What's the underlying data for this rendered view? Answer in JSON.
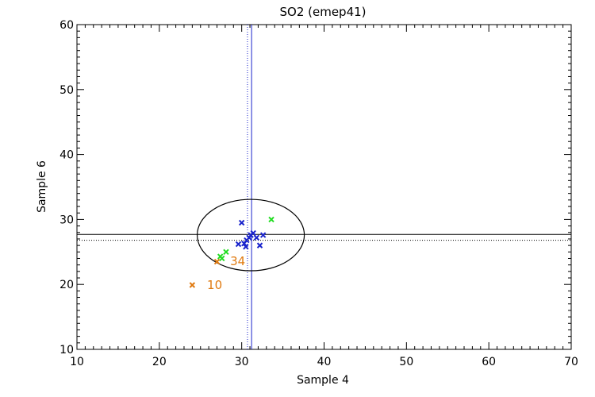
{
  "chart_data": {
    "type": "scatter",
    "title": "SO2 (emep41)",
    "xlabel": "Sample 4",
    "ylabel": "Sample 6",
    "xlim": [
      10,
      70
    ],
    "ylim": [
      10,
      60
    ],
    "xticks": [
      10,
      20,
      30,
      40,
      50,
      60,
      70
    ],
    "yticks": [
      10,
      20,
      30,
      40,
      50,
      60
    ],
    "grid": false,
    "colors": {
      "blue": "#1a24cc",
      "green": "#22dd22",
      "orange": "#e07a10",
      "ellipse": "#000000",
      "lines": "#1a24cc"
    },
    "series": [
      {
        "color_key": "blue",
        "points": [
          [
            30.0,
            29.5
          ],
          [
            29.6,
            26.2
          ],
          [
            30.3,
            26.3
          ],
          [
            30.5,
            25.8
          ],
          [
            30.6,
            26.8
          ],
          [
            30.9,
            27.2
          ],
          [
            31.1,
            27.6
          ],
          [
            31.4,
            27.9
          ],
          [
            31.8,
            27.2
          ],
          [
            32.2,
            26.0
          ],
          [
            32.6,
            27.6
          ]
        ]
      },
      {
        "color_key": "green",
        "points": [
          [
            33.6,
            30.0
          ],
          [
            28.1,
            25.0
          ],
          [
            27.4,
            24.3
          ],
          [
            27.6,
            24.0
          ]
        ]
      },
      {
        "color_key": "orange",
        "points": [
          [
            24.0,
            19.9
          ],
          [
            27.0,
            23.5
          ]
        ]
      }
    ],
    "annotations": [
      {
        "text": "10",
        "x": 25.8,
        "y": 19.9,
        "color_key": "orange"
      },
      {
        "text": "34",
        "x": 28.6,
        "y": 23.6,
        "color_key": "orange"
      }
    ],
    "ellipse": {
      "cx": 31.1,
      "cy": 27.6,
      "rx": 6.5,
      "ry": 5.5
    },
    "vlines": [
      {
        "x": 31.2,
        "style": "solid",
        "color_key": "lines"
      },
      {
        "x": 30.7,
        "style": "dotted",
        "color_key": "lines"
      }
    ],
    "hlines": [
      {
        "y": 27.7,
        "style": "solid",
        "color_key": "ellipse"
      },
      {
        "y": 26.8,
        "style": "dotted",
        "color_key": "ellipse"
      }
    ]
  }
}
